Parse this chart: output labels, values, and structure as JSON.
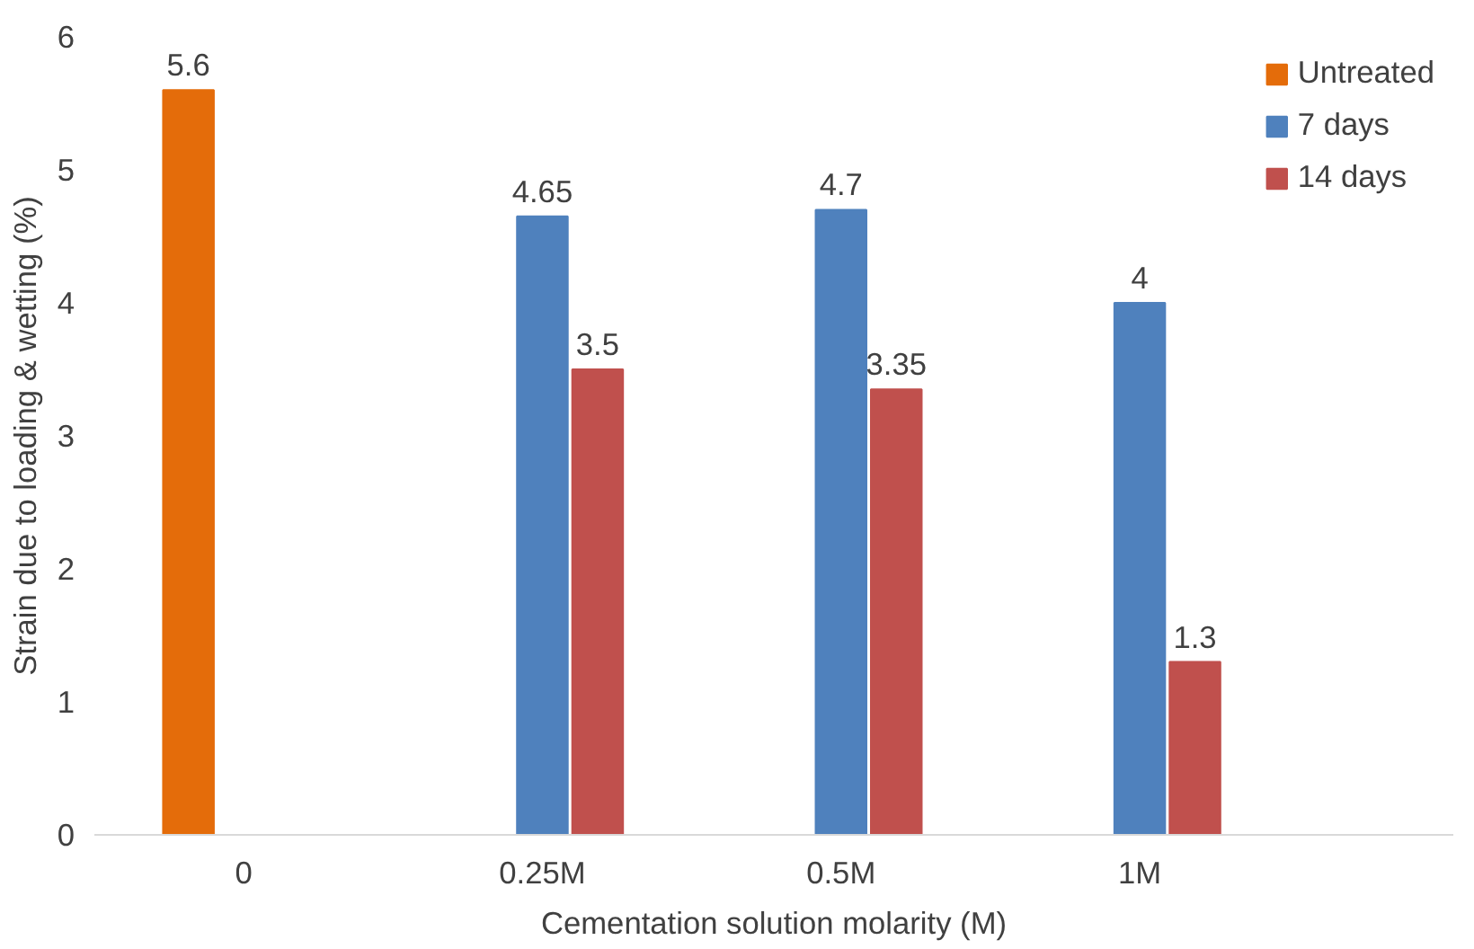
{
  "chart_data": {
    "type": "bar",
    "xlabel": "Cementation solution molarity (M)",
    "ylabel": "Strain due to loading & wetting (%)",
    "categories": [
      "0",
      "0.25M",
      "0.5M",
      "1M"
    ],
    "series": [
      {
        "name": "Untreated",
        "color": "#e46c0a",
        "values": [
          5.6,
          null,
          null,
          null
        ]
      },
      {
        "name": "7 days",
        "color": "#4f81bd",
        "values": [
          null,
          4.65,
          4.7,
          4
        ]
      },
      {
        "name": "14 days",
        "color": "#c0504d",
        "values": [
          null,
          3.5,
          3.35,
          1.3
        ]
      }
    ],
    "ylim": [
      0,
      6
    ],
    "yticks": [
      0,
      1,
      2,
      3,
      4,
      5,
      6
    ],
    "grid": false,
    "legend": "top right",
    "data_labels": true
  }
}
